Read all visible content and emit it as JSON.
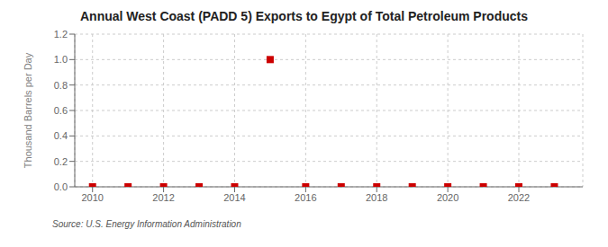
{
  "chart_data": {
    "type": "scatter",
    "title": "Annual West Coast (PADD 5) Exports to Egypt of Total Petroleum Products",
    "y_label": "Thousand Barrels per Day",
    "annotations": [
      "Source: U.S. Energy Information Administration"
    ],
    "x": [
      2010,
      2011,
      2012,
      2013,
      2014,
      2015,
      2016,
      2017,
      2018,
      2019,
      2020,
      2021,
      2022,
      2023
    ],
    "values": [
      0.0,
      0.0,
      0.0,
      0.0,
      0.0,
      1.0,
      0.0,
      0.0,
      0.0,
      0.0,
      0.0,
      0.0,
      0.0,
      0.0
    ],
    "color": "#cc0000",
    "marker": "square",
    "xlim": [
      2009.5,
      2023.8
    ],
    "xticks": [
      2010,
      2012,
      2014,
      2016,
      2018,
      2020,
      2022
    ],
    "ylim": [
      0.0,
      1.2
    ],
    "yticks": [
      {
        "value": 0.0,
        "label": "0.0"
      },
      0.2,
      0.4,
      0.6,
      0.8,
      {
        "value": 1.0,
        "label": "1.0"
      },
      1.2
    ],
    "grid": true
  }
}
